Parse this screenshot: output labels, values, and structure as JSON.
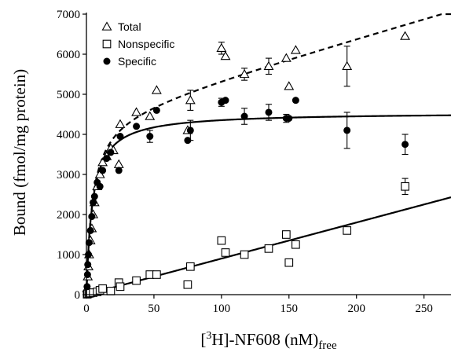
{
  "chart_data": {
    "type": "scatter",
    "xlabel": {
      "main": "[",
      "sup": "3",
      "rest": "H]-NF608 (nM)",
      "sub": "free"
    },
    "ylabel": "Bound (fmol/mg protein)",
    "xlim": [
      0,
      270
    ],
    "ylim": [
      0,
      7000
    ],
    "xticks": [
      0,
      50,
      100,
      150,
      200,
      250
    ],
    "yticks": [
      0,
      1000,
      2000,
      3000,
      4000,
      5000,
      6000,
      7000
    ],
    "legend_position": "top-left",
    "series": [
      {
        "name": "Total",
        "marker": "triangle-open",
        "points": [
          {
            "x": 0.5,
            "y": 150
          },
          {
            "x": 1,
            "y": 450
          },
          {
            "x": 1.5,
            "y": 700
          },
          {
            "x": 2,
            "y": 1000
          },
          {
            "x": 3,
            "y": 1350
          },
          {
            "x": 4,
            "y": 1650
          },
          {
            "x": 5,
            "y": 2000
          },
          {
            "x": 6,
            "y": 2300
          },
          {
            "x": 8,
            "y": 2700
          },
          {
            "x": 10,
            "y": 3000
          },
          {
            "x": 12,
            "y": 3300
          },
          {
            "x": 15,
            "y": 3450
          },
          {
            "x": 18,
            "y": 3650
          },
          {
            "x": 20,
            "y": 3600
          },
          {
            "x": 24,
            "y": 3250
          },
          {
            "x": 25,
            "y": 4250
          },
          {
            "x": 37,
            "y": 4550
          },
          {
            "x": 47,
            "y": 4450
          },
          {
            "x": 52,
            "y": 5100
          },
          {
            "x": 75,
            "y": 4100
          },
          {
            "x": 77,
            "y": 4850,
            "err": 250
          },
          {
            "x": 100,
            "y": 6150,
            "err": 150
          },
          {
            "x": 103,
            "y": 5950
          },
          {
            "x": 117,
            "y": 5500,
            "err": 150
          },
          {
            "x": 135,
            "y": 5700,
            "err": 200
          },
          {
            "x": 148,
            "y": 5900
          },
          {
            "x": 150,
            "y": 5200
          },
          {
            "x": 155,
            "y": 6100
          },
          {
            "x": 193,
            "y": 5700,
            "err": 500
          },
          {
            "x": 236,
            "y": 6450
          }
        ]
      },
      {
        "name": "Nonspecific",
        "marker": "square-open",
        "points": [
          {
            "x": 0.5,
            "y": 10
          },
          {
            "x": 1,
            "y": 20
          },
          {
            "x": 2,
            "y": 30
          },
          {
            "x": 3,
            "y": 40
          },
          {
            "x": 5,
            "y": 50
          },
          {
            "x": 8,
            "y": 70
          },
          {
            "x": 10,
            "y": 110
          },
          {
            "x": 12,
            "y": 150
          },
          {
            "x": 18,
            "y": 90
          },
          {
            "x": 24,
            "y": 300
          },
          {
            "x": 25,
            "y": 200
          },
          {
            "x": 37,
            "y": 350
          },
          {
            "x": 47,
            "y": 500
          },
          {
            "x": 52,
            "y": 500
          },
          {
            "x": 75,
            "y": 250
          },
          {
            "x": 77,
            "y": 700
          },
          {
            "x": 100,
            "y": 1350
          },
          {
            "x": 103,
            "y": 1050
          },
          {
            "x": 117,
            "y": 1000
          },
          {
            "x": 135,
            "y": 1150
          },
          {
            "x": 148,
            "y": 1500
          },
          {
            "x": 150,
            "y": 800
          },
          {
            "x": 155,
            "y": 1250
          },
          {
            "x": 193,
            "y": 1600
          },
          {
            "x": 236,
            "y": 2700,
            "err": 200
          }
        ]
      },
      {
        "name": "Specific",
        "marker": "circle-filled",
        "points": [
          {
            "x": 0.5,
            "y": 200
          },
          {
            "x": 0.8,
            "y": 500
          },
          {
            "x": 1,
            "y": 750
          },
          {
            "x": 1.5,
            "y": 1000
          },
          {
            "x": 2,
            "y": 1300
          },
          {
            "x": 3,
            "y": 1600
          },
          {
            "x": 4,
            "y": 1950
          },
          {
            "x": 5,
            "y": 2300
          },
          {
            "x": 6,
            "y": 2450
          },
          {
            "x": 8,
            "y": 2800
          },
          {
            "x": 10,
            "y": 2700
          },
          {
            "x": 12,
            "y": 3100
          },
          {
            "x": 15,
            "y": 3400
          },
          {
            "x": 18,
            "y": 3550
          },
          {
            "x": 24,
            "y": 3100
          },
          {
            "x": 25,
            "y": 3950
          },
          {
            "x": 37,
            "y": 4200
          },
          {
            "x": 47,
            "y": 3950,
            "err": 150
          },
          {
            "x": 52,
            "y": 4600
          },
          {
            "x": 75,
            "y": 3850
          },
          {
            "x": 77,
            "y": 4100,
            "err": 250
          },
          {
            "x": 100,
            "y": 4800,
            "err": 100
          },
          {
            "x": 103,
            "y": 4850
          },
          {
            "x": 117,
            "y": 4450,
            "err": 200
          },
          {
            "x": 135,
            "y": 4550,
            "err": 200
          },
          {
            "x": 148,
            "y": 4400,
            "err": 100
          },
          {
            "x": 150,
            "y": 4400
          },
          {
            "x": 155,
            "y": 4850
          },
          {
            "x": 193,
            "y": 4100,
            "err": 450
          },
          {
            "x": 236,
            "y": 3750,
            "err": 250
          }
        ]
      }
    ],
    "fits": [
      {
        "series": "Total",
        "style": "dashed",
        "Bmax": 4550,
        "Kd": 4.5,
        "ns": 9.6
      },
      {
        "series": "Specific",
        "style": "solid",
        "Bmax": 4550,
        "Kd": 4.5,
        "ns": 0
      },
      {
        "series": "Nonspecific",
        "style": "solid",
        "Bmax": 0,
        "Kd": 1,
        "ns": 9.0
      }
    ]
  }
}
